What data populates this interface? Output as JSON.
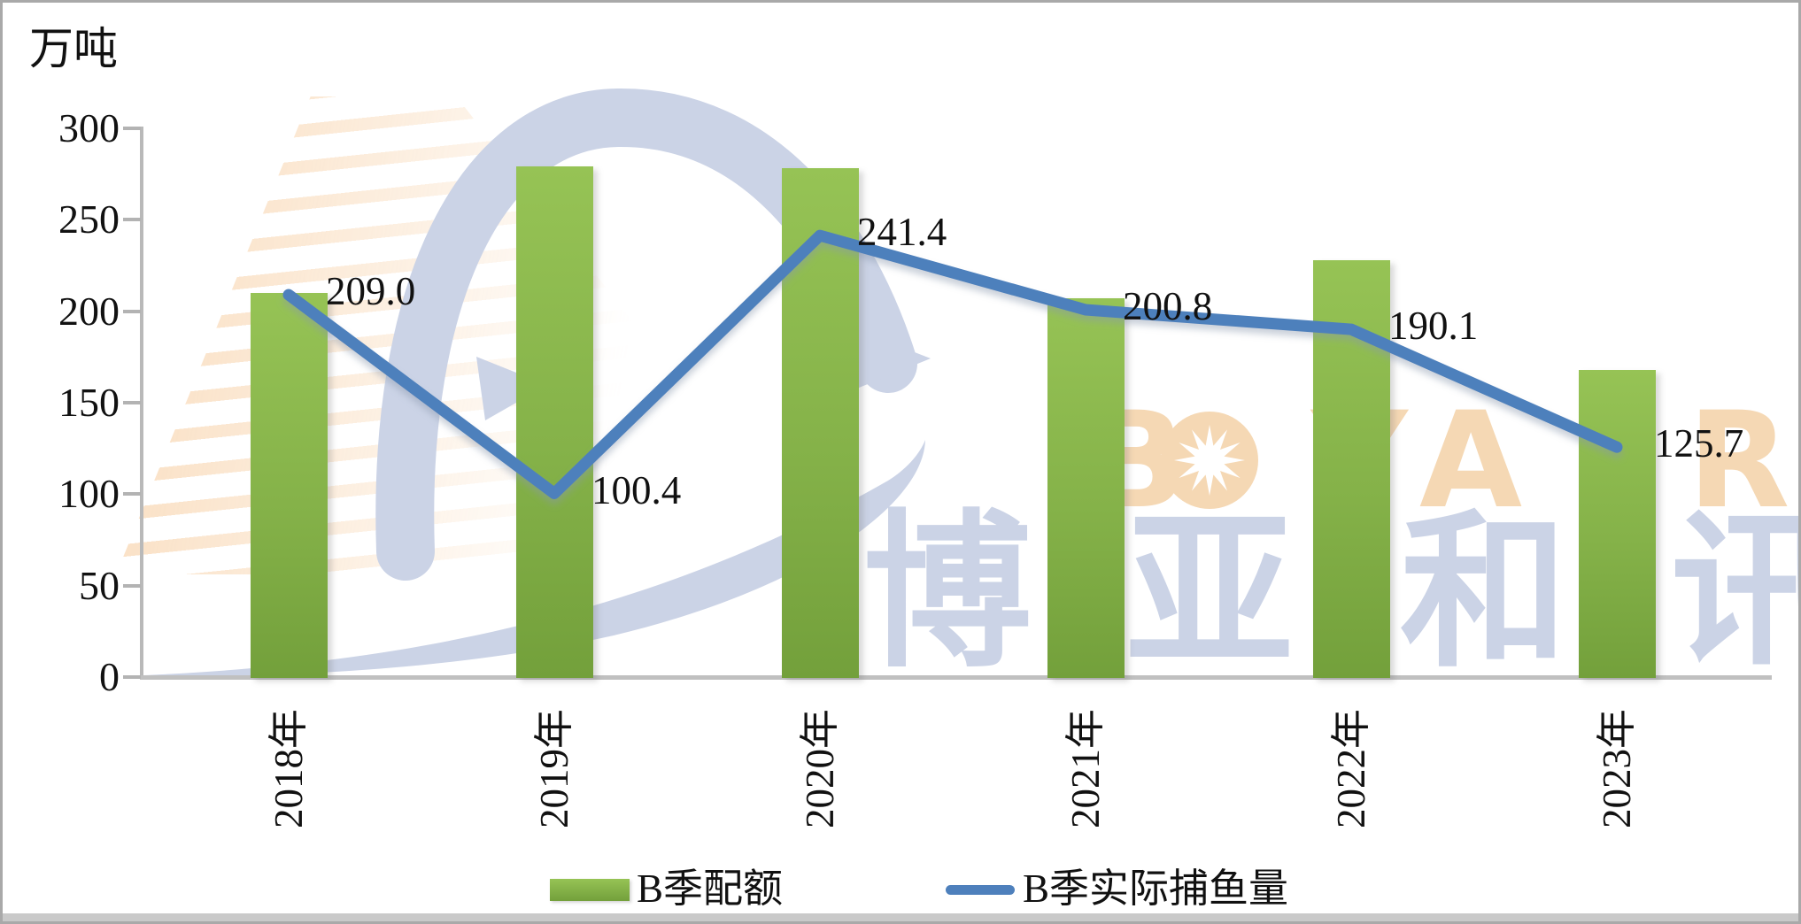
{
  "y_axis": {
    "unit": "万吨",
    "ticks": [
      "0",
      "50",
      "100",
      "150",
      "200",
      "250",
      "300"
    ]
  },
  "chart_data": {
    "type": "bar+line",
    "categories": [
      "2018年",
      "2019年",
      "2020年",
      "2021年",
      "2022年",
      "2023年"
    ],
    "series": [
      {
        "name": "B季配额",
        "type": "bar",
        "values": [
          210,
          279,
          278,
          207,
          228,
          168
        ],
        "color_top": "#96c355",
        "color_bottom": "#73a03b"
      },
      {
        "name": "B季实际捕鱼量",
        "type": "line",
        "values": [
          209.0,
          100.4,
          241.4,
          200.8,
          190.1,
          125.7
        ],
        "point_labels": [
          "209.0",
          "100.4",
          "241.4",
          "200.8",
          "190.1",
          "125.7"
        ],
        "color": "#4e80bc"
      }
    ],
    "ylabel": "万吨",
    "ylim": [
      0,
      300
    ],
    "grid": false,
    "legend_position": "bottom"
  },
  "legend": {
    "bar_label": "B季配额",
    "line_label": "B季实际捕鱼量"
  },
  "watermark": {
    "latin_letters": [
      "B",
      "O",
      "Y",
      "A",
      "R"
    ],
    "cn_chars": [
      "博",
      "亚",
      "和",
      "讯"
    ],
    "cn_text": "博亚和讯",
    "orange": "#f5d8b4",
    "lavender": "#cbd3e6"
  }
}
